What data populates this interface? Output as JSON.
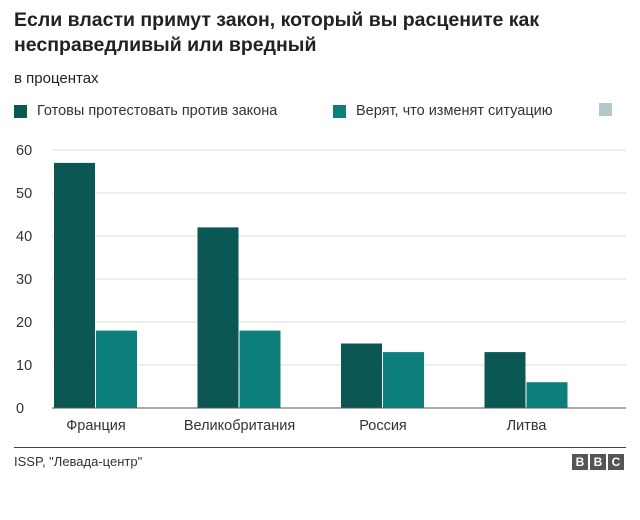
{
  "chart_data": {
    "type": "bar",
    "title": "Если власти примут закон, который вы расцените как несправедливый или вредный",
    "subtitle": "в процентах",
    "categories": [
      "Франция",
      "Великобритания",
      "Россия",
      "Литва"
    ],
    "series": [
      {
        "name": "Готовы протестовать против закона",
        "values": [
          57,
          42,
          15,
          13
        ],
        "color": "#0a5753"
      },
      {
        "name": "Верят, что изменят ситуацию",
        "values": [
          18,
          18,
          13,
          6
        ],
        "color": "#0c7f7c"
      },
      {
        "name": "",
        "values": [
          0,
          0,
          0,
          0
        ],
        "color": "#b4c7cb"
      }
    ],
    "ylim": [
      0,
      60
    ],
    "yticks": [
      "0",
      "10",
      "20",
      "30",
      "40",
      "50",
      "60"
    ],
    "grid": true,
    "legend": "top-left"
  },
  "footer": {
    "source": "ISSP, \"Левада-центр\"",
    "logo": [
      "B",
      "B",
      "C"
    ]
  }
}
